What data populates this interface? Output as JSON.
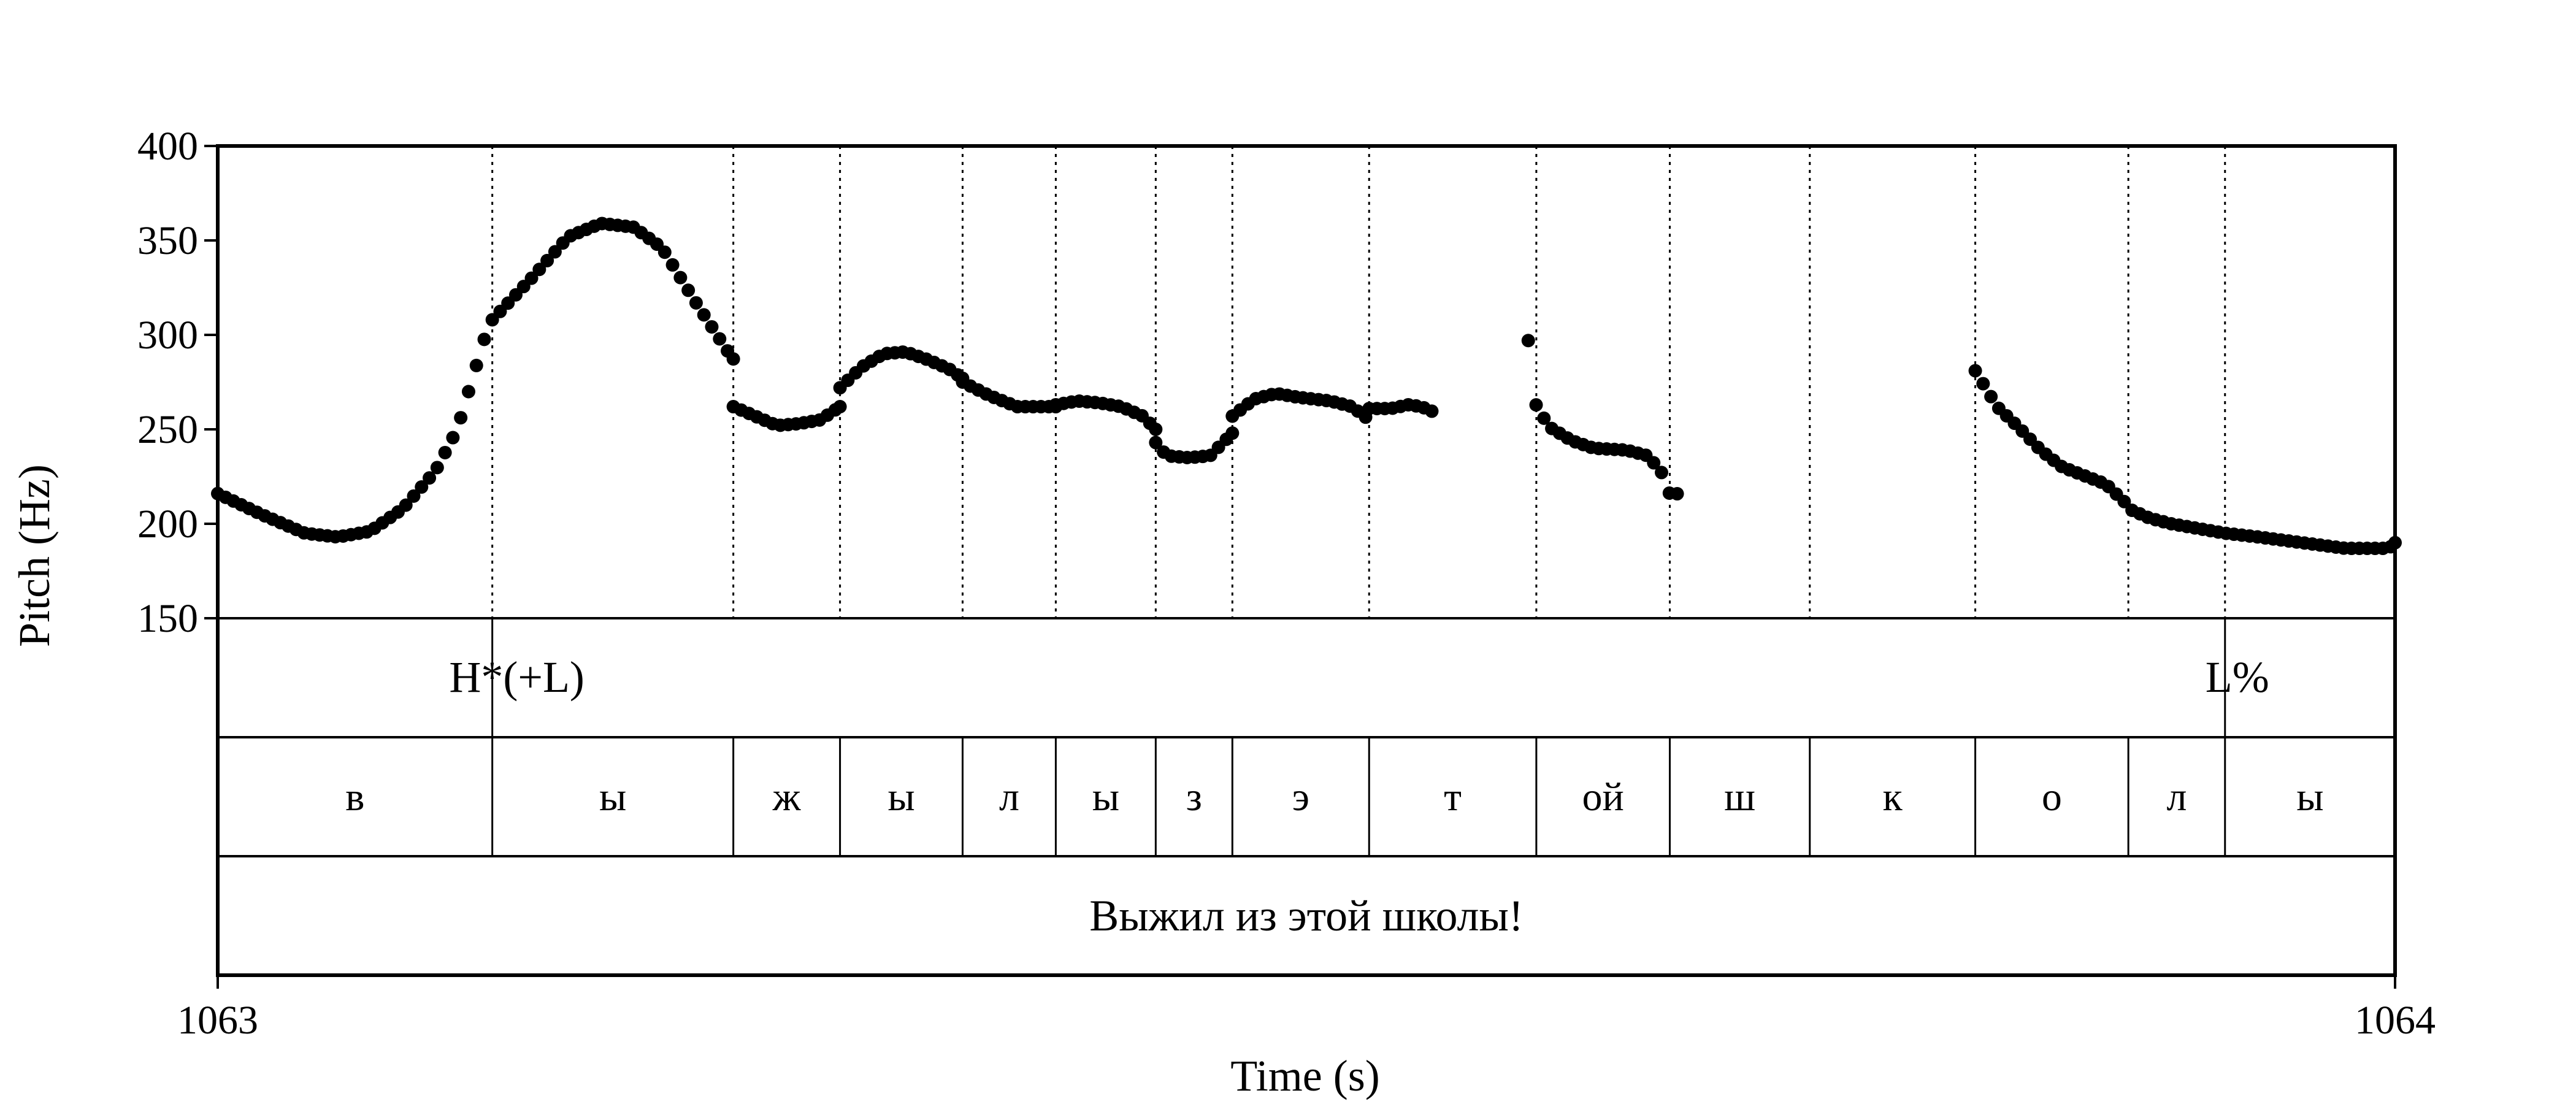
{
  "chart_data": {
    "type": "scatter",
    "xlabel": "Time (s)",
    "ylabel": "Pitch (Hz)",
    "xlim": [
      1063,
      1064
    ],
    "ylim": [
      150,
      400
    ],
    "x_tick_labels": [
      "1063",
      "1064"
    ],
    "y_ticks": [
      150,
      200,
      250,
      300,
      350,
      400
    ],
    "y_tick_labels": [
      "150",
      "200",
      "250",
      "300",
      "350",
      "400"
    ],
    "grid": false,
    "boundaries": [
      1063.1261,
      1063.2368,
      1063.2858,
      1063.3421,
      1063.3849,
      1063.4308,
      1063.466,
      1063.5288,
      1063.6056,
      1063.6669,
      1063.7312,
      1063.8072,
      1063.8775,
      1063.9219
    ],
    "tones": [
      {
        "label": "H*(+L)",
        "time": 1063.1261
      },
      {
        "label": "L%",
        "time": 1063.9219
      }
    ],
    "segments": [
      {
        "label": "в",
        "start": 1063.0,
        "end": 1063.1261
      },
      {
        "label": "ы",
        "start": 1063.1261,
        "end": 1063.2368
      },
      {
        "label": "ж",
        "start": 1063.2368,
        "end": 1063.2858
      },
      {
        "label": "ы",
        "start": 1063.2858,
        "end": 1063.3421
      },
      {
        "label": "л",
        "start": 1063.3421,
        "end": 1063.3849
      },
      {
        "label": "ы",
        "start": 1063.3849,
        "end": 1063.4308
      },
      {
        "label": "з",
        "start": 1063.4308,
        "end": 1063.466
      },
      {
        "label": "э",
        "start": 1063.466,
        "end": 1063.5288
      },
      {
        "label": "т",
        "start": 1063.5288,
        "end": 1063.6056
      },
      {
        "label": "ой",
        "start": 1063.6056,
        "end": 1063.6669
      },
      {
        "label": "ш",
        "start": 1063.6669,
        "end": 1063.7312
      },
      {
        "label": "к",
        "start": 1063.7312,
        "end": 1063.8072
      },
      {
        "label": "о",
        "start": 1063.8072,
        "end": 1063.8775
      },
      {
        "label": "л",
        "start": 1063.8775,
        "end": 1063.9219
      },
      {
        "label": "ы",
        "start": 1063.9219,
        "end": 1064.0
      }
    ],
    "sentence": "Выжил из этой школы!",
    "pitch_segments": [
      {
        "t0": 1063.0,
        "t1": 1063.1225,
        "points": [
          [
            0,
            216
          ],
          [
            0.02,
            205
          ],
          [
            0.04,
            195
          ],
          [
            0.055,
            193
          ],
          [
            0.07,
            196
          ],
          [
            0.085,
            208
          ],
          [
            0.1,
            228
          ],
          [
            0.11,
            250
          ],
          [
            0.1225,
            298
          ]
        ]
      },
      {
        "t0": 1063.1261,
        "t1": 1063.2368,
        "points": [
          [
            0,
            308
          ],
          [
            0.018,
            330
          ],
          [
            0.035,
            352
          ],
          [
            0.05,
            359
          ],
          [
            0.065,
            357
          ],
          [
            0.078,
            346
          ],
          [
            0.093,
            318
          ],
          [
            0.11,
            288
          ],
          [
            0.125,
            272
          ],
          [
            0.1368,
            262
          ]
        ]
      },
      {
        "t0": 1063.2368,
        "t1": 1063.2858,
        "points": [
          [
            0,
            262
          ],
          [
            0.01,
            257
          ],
          [
            0.02,
            252
          ],
          [
            0.03,
            253
          ],
          [
            0.04,
            255
          ],
          [
            0.049,
            262
          ]
        ]
      },
      {
        "t0": 1063.2858,
        "t1": 1063.3421,
        "points": [
          [
            0,
            272
          ],
          [
            0.01,
            283
          ],
          [
            0.02,
            290
          ],
          [
            0.03,
            291
          ],
          [
            0.04,
            287
          ],
          [
            0.05,
            282
          ],
          [
            0.0563,
            277
          ]
        ]
      },
      {
        "t0": 1063.3421,
        "t1": 1063.3849,
        "points": [
          [
            0,
            275
          ],
          [
            0.012,
            268
          ],
          [
            0.025,
            262
          ],
          [
            0.0428,
            262
          ]
        ]
      },
      {
        "t0": 1063.3849,
        "t1": 1063.4308,
        "points": [
          [
            0,
            263
          ],
          [
            0.01,
            265
          ],
          [
            0.02,
            264
          ],
          [
            0.03,
            262
          ],
          [
            0.04,
            257
          ],
          [
            0.0459,
            250
          ]
        ]
      },
      {
        "t0": 1063.4308,
        "t1": 1063.466,
        "points": [
          [
            0,
            243
          ],
          [
            0.005,
            236
          ],
          [
            0.015,
            235
          ],
          [
            0.025,
            236
          ],
          [
            0.0352,
            248
          ]
        ]
      },
      {
        "t0": 1063.466,
        "t1": 1063.5288,
        "points": [
          [
            0,
            257
          ],
          [
            0.01,
            266
          ],
          [
            0.02,
            269
          ],
          [
            0.03,
            267
          ],
          [
            0.045,
            265
          ],
          [
            0.055,
            262
          ],
          [
            0.0628,
            255
          ]
        ]
      },
      {
        "t0": 1063.5288,
        "t1": 1063.5588,
        "points": [
          [
            0,
            261
          ],
          [
            0.01,
            261
          ],
          [
            0.018,
            263
          ],
          [
            0.024,
            262
          ],
          [
            0.03,
            259
          ]
        ]
      },
      {
        "t0": 1063.6019,
        "t1": 1063.6712,
        "points": [
          [
            0,
            297
          ],
          [
            0.0037,
            262
          ],
          [
            0.01,
            251
          ],
          [
            0.02,
            244
          ],
          [
            0.03,
            240
          ],
          [
            0.045,
            239
          ],
          [
            0.055,
            236
          ],
          [
            0.062,
            226
          ],
          [
            0.0663,
            211
          ],
          [
            0.0693,
            218
          ],
          [
            0.0693,
            231
          ]
        ]
      },
      {
        "t0": 1063.8072,
        "t1": 1064.0,
        "points": [
          [
            0,
            281
          ],
          [
            0.01,
            262
          ],
          [
            0.02,
            251
          ],
          [
            0.03,
            239
          ],
          [
            0.04,
            230
          ],
          [
            0.06,
            221
          ],
          [
            0.07,
            210
          ],
          [
            0.0703,
            208
          ],
          [
            0.08,
            203
          ],
          [
            0.09,
            200
          ],
          [
            0.1147,
            195
          ],
          [
            0.13,
            193
          ],
          [
            0.15,
            190
          ],
          [
            0.17,
            187
          ],
          [
            0.19,
            187
          ],
          [
            0.1928,
            190
          ]
        ]
      }
    ]
  }
}
